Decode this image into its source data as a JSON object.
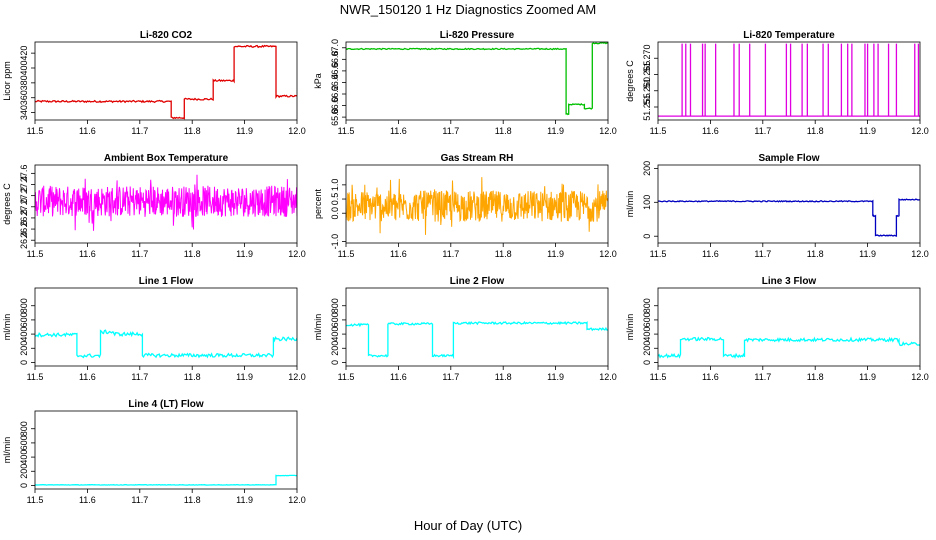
{
  "title": "NWR_150120  1 Hz Diagnostics Zoomed AM",
  "xlabel": "Hour of Day (UTC)",
  "chart_data": [
    {
      "type": "line",
      "title": "Li-820 CO2",
      "ylabel": "Licor ppm",
      "color": "#e00000",
      "xlim": [
        11.5,
        12.0
      ],
      "ylim": [
        330,
        435
      ],
      "yticks": [
        340,
        360,
        380,
        400,
        420
      ],
      "xticks": [
        11.5,
        11.6,
        11.7,
        11.8,
        11.9,
        12.0
      ],
      "segments": [
        [
          11.5,
          11.76,
          355
        ],
        [
          11.76,
          11.785,
          333
        ],
        [
          11.785,
          11.84,
          358
        ],
        [
          11.84,
          11.88,
          383
        ],
        [
          11.88,
          11.96,
          429
        ],
        [
          11.96,
          12.0,
          362
        ]
      ],
      "noise": 1.2
    },
    {
      "type": "line",
      "title": "Li-820 Pressure",
      "ylabel": "kPa",
      "color": "#00c000",
      "xlim": [
        11.5,
        12.0
      ],
      "ylim": [
        65.75,
        67.1
      ],
      "yticks": [
        65.8,
        66.0,
        66.2,
        66.4,
        66.6,
        66.8,
        67.0
      ],
      "xticks": [
        11.5,
        11.6,
        11.7,
        11.8,
        11.9,
        12.0
      ],
      "segments": [
        [
          11.5,
          11.92,
          66.98
        ],
        [
          11.92,
          11.925,
          65.85
        ],
        [
          11.925,
          11.955,
          66.02
        ],
        [
          11.955,
          11.97,
          65.95
        ],
        [
          11.97,
          12.0,
          67.08
        ]
      ],
      "noise": 0.01
    },
    {
      "type": "spikes",
      "title": "Li-820 Temperature",
      "ylabel": "degrees C",
      "color": "#e000e0",
      "xlim": [
        11.5,
        12.0
      ],
      "ylim": [
        51.251,
        51.275
      ],
      "yticks": [
        51.255,
        51.26,
        51.265,
        51.27
      ],
      "xticks": [
        11.5,
        11.6,
        11.7,
        11.8,
        11.9,
        12.0
      ],
      "base": 51.2522,
      "top": 51.2745,
      "spikes": [
        11.546,
        11.553,
        11.562,
        11.585,
        11.59,
        11.61,
        11.645,
        11.655,
        11.675,
        11.705,
        11.745,
        11.753,
        11.775,
        11.785,
        11.815,
        11.825,
        11.85,
        11.862,
        11.87,
        11.895,
        11.9,
        11.912,
        11.92,
        11.94,
        11.955,
        11.99,
        11.997
      ]
    },
    {
      "type": "noise",
      "title": "Ambient Box Temperature",
      "ylabel": "degrees C",
      "color": "#ff00ff",
      "xlim": [
        11.5,
        12.0
      ],
      "ylim": [
        26.35,
        27.75
      ],
      "yticks": [
        26.4,
        26.6,
        26.8,
        27.0,
        27.2,
        27.4,
        27.6
      ],
      "xticks": [
        11.5,
        11.6,
        11.7,
        11.8,
        11.9,
        12.0
      ],
      "center": 27.1,
      "amp": 0.28
    },
    {
      "type": "noise",
      "title": "Gas Stream RH",
      "ylabel": "percent",
      "color": "#ffa500",
      "xlim": [
        11.5,
        12.0
      ],
      "ylim": [
        -1.05,
        1.7
      ],
      "yticks": [
        -1.0,
        0.0,
        0.5,
        1.0
      ],
      "xticks": [
        11.5,
        11.6,
        11.7,
        11.8,
        11.9,
        12.0
      ],
      "center": 0.25,
      "amp": 0.55
    },
    {
      "type": "line",
      "title": "Sample Flow",
      "ylabel": "ml/min",
      "color": "#0000c0",
      "xlim": [
        11.5,
        12.0
      ],
      "ylim": [
        -20,
        210
      ],
      "yticks": [
        0,
        100,
        200
      ],
      "xticks": [
        11.5,
        11.6,
        11.7,
        11.8,
        11.9,
        12.0
      ],
      "segments": [
        [
          11.5,
          11.91,
          103
        ],
        [
          11.91,
          11.915,
          60
        ],
        [
          11.915,
          11.955,
          2
        ],
        [
          11.955,
          11.96,
          60
        ],
        [
          11.96,
          12.0,
          108
        ]
      ],
      "noise": 1.5
    },
    {
      "type": "line",
      "title": "Line 1 Flow",
      "ylabel": "ml/min",
      "color": "#00ffff",
      "xlim": [
        11.5,
        12.0
      ],
      "ylim": [
        -50,
        1050
      ],
      "yticks": [
        0,
        200,
        400,
        600,
        800
      ],
      "xticks": [
        11.5,
        11.6,
        11.7,
        11.8,
        11.9,
        12.0
      ],
      "segments": [
        [
          11.5,
          11.58,
          390
        ],
        [
          11.58,
          11.625,
          95
        ],
        [
          11.625,
          11.65,
          430
        ],
        [
          11.65,
          11.705,
          400
        ],
        [
          11.705,
          11.955,
          100
        ],
        [
          11.955,
          12.0,
          330
        ]
      ],
      "noise": 25
    },
    {
      "type": "line",
      "title": "Line 2 Flow",
      "ylabel": "ml/min",
      "color": "#00ffff",
      "xlim": [
        11.5,
        12.0
      ],
      "ylim": [
        -50,
        1050
      ],
      "yticks": [
        0,
        200,
        400,
        600,
        800
      ],
      "xticks": [
        11.5,
        11.6,
        11.7,
        11.8,
        11.9,
        12.0
      ],
      "segments": [
        [
          11.5,
          11.543,
          530
        ],
        [
          11.543,
          11.58,
          95
        ],
        [
          11.58,
          11.665,
          545
        ],
        [
          11.665,
          11.705,
          95
        ],
        [
          11.705,
          11.96,
          555
        ],
        [
          11.96,
          12.0,
          470
        ]
      ],
      "noise": 15
    },
    {
      "type": "line",
      "title": "Line 3 Flow",
      "ylabel": "ml/min",
      "color": "#00ffff",
      "xlim": [
        11.5,
        12.0
      ],
      "ylim": [
        -50,
        1050
      ],
      "yticks": [
        0,
        200,
        400,
        600,
        800
      ],
      "xticks": [
        11.5,
        11.6,
        11.7,
        11.8,
        11.9,
        12.0
      ],
      "segments": [
        [
          11.5,
          11.543,
          95
        ],
        [
          11.543,
          11.625,
          330
        ],
        [
          11.625,
          11.665,
          95
        ],
        [
          11.665,
          11.96,
          320
        ],
        [
          11.96,
          12.0,
          260
        ]
      ],
      "noise": 22
    },
    {
      "type": "line",
      "title": "Line 4 (LT) Flow",
      "ylabel": "ml/min",
      "color": "#00ffff",
      "xlim": [
        11.5,
        12.0
      ],
      "ylim": [
        -50,
        1050
      ],
      "yticks": [
        0,
        200,
        400,
        600,
        800
      ],
      "xticks": [
        11.5,
        11.6,
        11.7,
        11.8,
        11.9,
        12.0
      ],
      "segments": [
        [
          11.5,
          11.96,
          8
        ],
        [
          11.96,
          12.0,
          140
        ]
      ],
      "noise": 3
    }
  ]
}
